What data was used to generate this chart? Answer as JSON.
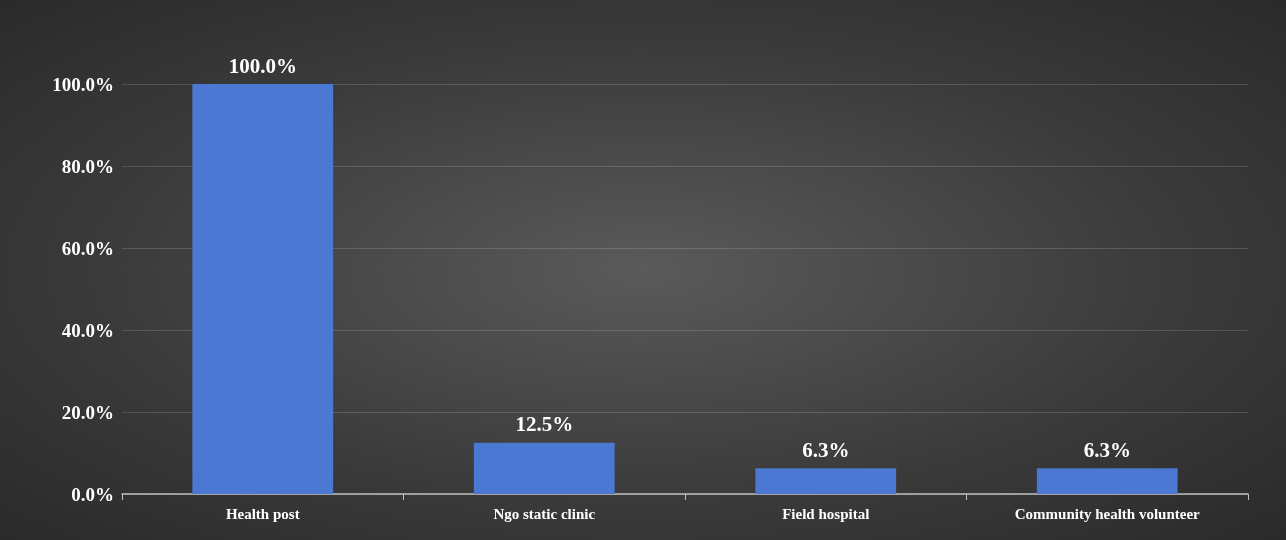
{
  "chart_data": {
    "type": "bar",
    "categories": [
      "Health post",
      "Ngo static clinic",
      "Field hospital",
      "Community health volunteer"
    ],
    "values": [
      100,
      12.5,
      6.3,
      6.3
    ],
    "value_labels": [
      "100.0%",
      "12.5%",
      "6.3%",
      "6.3%"
    ],
    "color": "#4a78d2",
    "ylim": [
      0,
      100
    ],
    "yticks": [
      {
        "value": 0,
        "label": "0.0%"
      },
      {
        "value": 20,
        "label": "20.0%"
      },
      {
        "value": 40,
        "label": "40.0%"
      },
      {
        "value": 60,
        "label": "60.0%"
      },
      {
        "value": 80,
        "label": "80.0%"
      },
      {
        "value": 100,
        "label": "100.0%"
      }
    ],
    "grid": "y"
  }
}
